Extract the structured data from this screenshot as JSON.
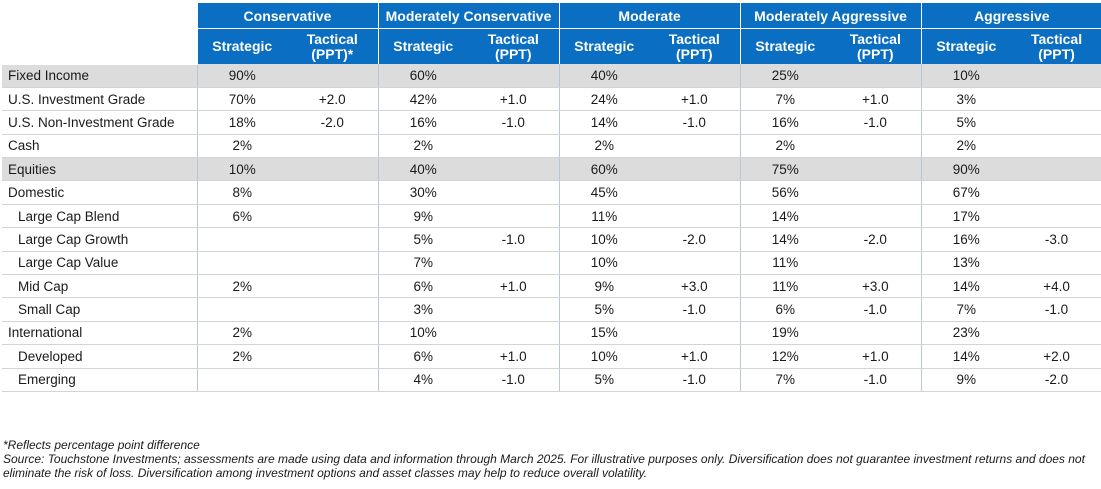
{
  "table": {
    "profiles": [
      {
        "name": "Conservative",
        "strategic_label": "Strategic",
        "tactical_label": "Tactical (PPT)*"
      },
      {
        "name": "Moderately Conservative",
        "strategic_label": "Strategic",
        "tactical_label": "Tactical (PPT)"
      },
      {
        "name": "Moderate",
        "strategic_label": "Strategic",
        "tactical_label": "Tactical (PPT)"
      },
      {
        "name": "Moderately Aggressive",
        "strategic_label": "Strategic",
        "tactical_label": "Tactical (PPT)"
      },
      {
        "name": "Aggressive",
        "strategic_label": "Strategic",
        "tactical_label": "Tactical (PPT)"
      }
    ],
    "rows": [
      {
        "label": "Fixed Income",
        "category": true,
        "indent": false,
        "values": [
          "90%",
          "",
          "60%",
          "",
          "40%",
          "",
          "25%",
          "",
          "10%",
          ""
        ]
      },
      {
        "label": "U.S. Investment Grade",
        "category": false,
        "indent": false,
        "values": [
          "70%",
          "+2.0",
          "42%",
          "+1.0",
          "24%",
          "+1.0",
          "7%",
          "+1.0",
          "3%",
          ""
        ]
      },
      {
        "label": "U.S. Non-Investment Grade",
        "category": false,
        "indent": false,
        "values": [
          "18%",
          "-2.0",
          "16%",
          "-1.0",
          "14%",
          "-1.0",
          "16%",
          "-1.0",
          "5%",
          ""
        ]
      },
      {
        "label": "Cash",
        "category": false,
        "indent": false,
        "values": [
          "2%",
          "",
          "2%",
          "",
          "2%",
          "",
          "2%",
          "",
          "2%",
          ""
        ]
      },
      {
        "label": "Equities",
        "category": true,
        "indent": false,
        "values": [
          "10%",
          "",
          "40%",
          "",
          "60%",
          "",
          "75%",
          "",
          "90%",
          ""
        ]
      },
      {
        "label": "Domestic",
        "category": false,
        "indent": false,
        "values": [
          "8%",
          "",
          "30%",
          "",
          "45%",
          "",
          "56%",
          "",
          "67%",
          ""
        ]
      },
      {
        "label": "Large Cap Blend",
        "category": false,
        "indent": true,
        "values": [
          "6%",
          "",
          "9%",
          "",
          "11%",
          "",
          "14%",
          "",
          "17%",
          ""
        ]
      },
      {
        "label": "Large Cap Growth",
        "category": false,
        "indent": true,
        "values": [
          "",
          "",
          "5%",
          "-1.0",
          "10%",
          "-2.0",
          "14%",
          "-2.0",
          "16%",
          "-3.0"
        ]
      },
      {
        "label": "Large Cap Value",
        "category": false,
        "indent": true,
        "values": [
          "",
          "",
          "7%",
          "",
          "10%",
          "",
          "11%",
          "",
          "13%",
          ""
        ]
      },
      {
        "label": "Mid Cap",
        "category": false,
        "indent": true,
        "values": [
          "2%",
          "",
          "6%",
          "+1.0",
          "9%",
          "+3.0",
          "11%",
          "+3.0",
          "14%",
          "+4.0"
        ]
      },
      {
        "label": "Small Cap",
        "category": false,
        "indent": true,
        "values": [
          "",
          "",
          "3%",
          "",
          "5%",
          "-1.0",
          "6%",
          "-1.0",
          "7%",
          "-1.0"
        ]
      },
      {
        "label": "International",
        "category": false,
        "indent": false,
        "values": [
          "2%",
          "",
          "10%",
          "",
          "15%",
          "",
          "19%",
          "",
          "23%",
          ""
        ]
      },
      {
        "label": "Developed",
        "category": false,
        "indent": true,
        "values": [
          "2%",
          "",
          "6%",
          "+1.0",
          "10%",
          "+1.0",
          "12%",
          "+1.0",
          "14%",
          "+2.0"
        ]
      },
      {
        "label": "Emerging",
        "category": false,
        "indent": true,
        "values": [
          "",
          "",
          "4%",
          "-1.0",
          "5%",
          "-1.0",
          "7%",
          "-1.0",
          "9%",
          "-2.0"
        ]
      }
    ]
  },
  "footnotes": {
    "ppt_note": "*Reflects percentage point difference",
    "source": "Source: Touchstone Investments; assessments are made using data and information through March 2025. For illustrative purposes only. Diversification does not guarantee investment returns and does not eliminate the risk of loss. Diversification among investment options and asset classes may help to reduce overall volatility."
  }
}
